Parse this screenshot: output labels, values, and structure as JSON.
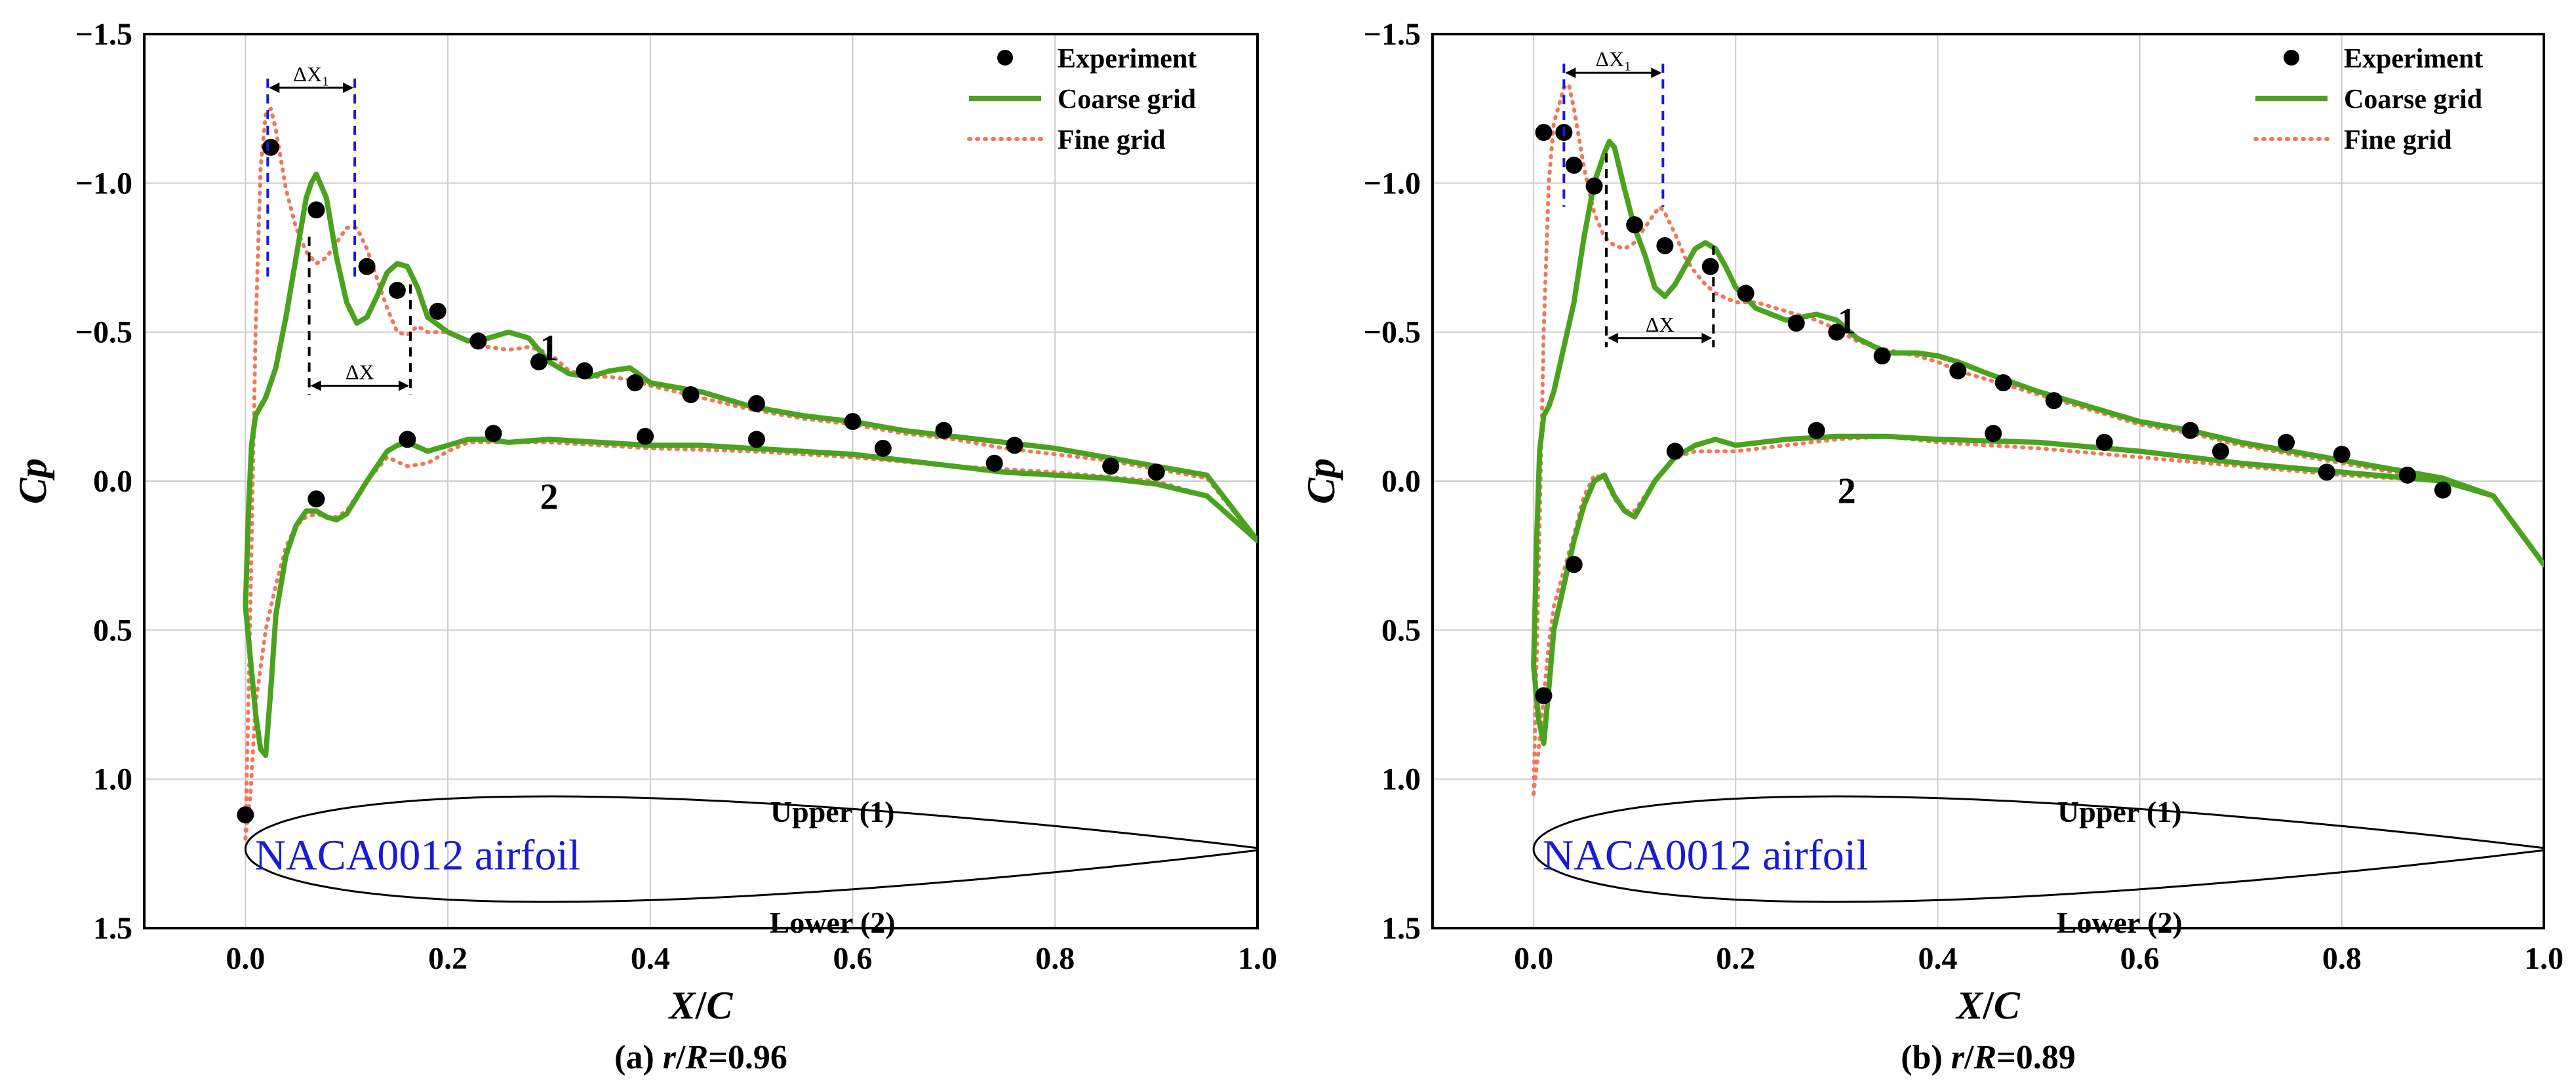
{
  "colors": {
    "experiment": "#000000",
    "coarse": "#4aa21e",
    "fine": "#f0785a",
    "grid": "#cccccc",
    "airfoil_text": "#1a1ad6",
    "marker_blue": "#1a1ad6",
    "marker_black": "#000000"
  },
  "chart_data": [
    {
      "type": "line",
      "panel": "a",
      "caption": "(a) r/R=0.96",
      "caption_parts": [
        "(a) ",
        "r",
        "/",
        "R",
        "=0.96"
      ],
      "xlabel": "X/C",
      "xlabel_parts": [
        "X",
        "/",
        "C"
      ],
      "ylabel": "Cp",
      "xlim": [
        -0.1,
        1.0
      ],
      "ylim": [
        1.5,
        -1.5
      ],
      "y_inverted": true,
      "grid": true,
      "legend_position": "top-right",
      "xticks": [
        "0.0",
        "0.2",
        "0.4",
        "0.6",
        "0.8",
        "1.0"
      ],
      "yticks": [
        "−1.5",
        "−1.0",
        "−0.5",
        "0.0",
        "0.5",
        "1.0",
        "1.5"
      ],
      "legend": [
        "Experiment",
        "Coarse   grid",
        "Fine grid"
      ],
      "curve_labels": [
        {
          "text": "1",
          "x": 0.3,
          "y": -0.45
        },
        {
          "text": "2",
          "x": 0.3,
          "y": 0.05
        }
      ],
      "airfoil_label": "NACA0012 airfoil",
      "upper_label": "Upper (1)",
      "lower_label": "Lower (2)",
      "annotations": [
        {
          "label": "ΔX₁",
          "x1": 0.022,
          "x2": 0.108,
          "y_line": -1.32,
          "y_bottom": -0.68,
          "color": "marker_blue"
        },
        {
          "label": "ΔX",
          "x1": 0.063,
          "x2": 0.163,
          "y_line": -0.32,
          "y_top": -0.82,
          "y_top2": -0.66,
          "color": "marker_black"
        }
      ],
      "series": [
        {
          "name": "Experiment",
          "style": "marker",
          "x": [
            0.025,
            0.07,
            0.12,
            0.15,
            0.19,
            0.23,
            0.29,
            0.335,
            0.385,
            0.44,
            0.505,
            0.6,
            0.69,
            0.76,
            0.0,
            0.07,
            0.16,
            0.245,
            0.395,
            0.505,
            0.63,
            0.74,
            0.855,
            0.9
          ],
          "y": [
            -1.12,
            -0.91,
            -0.72,
            -0.64,
            -0.57,
            -0.47,
            -0.4,
            -0.37,
            -0.33,
            -0.29,
            -0.26,
            -0.2,
            -0.17,
            -0.12,
            1.12,
            0.06,
            -0.14,
            -0.16,
            -0.15,
            -0.14,
            -0.11,
            -0.06,
            -0.05,
            -0.03
          ]
        },
        {
          "name": "Coarse grid upper",
          "style": "solid",
          "x": [
            0.0,
            0.003,
            0.006,
            0.01,
            0.015,
            0.02,
            0.03,
            0.04,
            0.05,
            0.06,
            0.065,
            0.07,
            0.08,
            0.09,
            0.1,
            0.11,
            0.12,
            0.13,
            0.14,
            0.15,
            0.16,
            0.17,
            0.18,
            0.2,
            0.22,
            0.24,
            0.26,
            0.28,
            0.3,
            0.32,
            0.34,
            0.36,
            0.38,
            0.4,
            0.45,
            0.5,
            0.55,
            0.6,
            0.65,
            0.7,
            0.75,
            0.8,
            0.85,
            0.9,
            0.95,
            1.0
          ],
          "y": [
            0.42,
            0.1,
            -0.12,
            -0.22,
            -0.25,
            -0.28,
            -0.38,
            -0.55,
            -0.75,
            -0.95,
            -1.0,
            -1.03,
            -0.95,
            -0.75,
            -0.6,
            -0.53,
            -0.55,
            -0.62,
            -0.7,
            -0.73,
            -0.72,
            -0.65,
            -0.55,
            -0.5,
            -0.47,
            -0.48,
            -0.5,
            -0.48,
            -0.4,
            -0.36,
            -0.35,
            -0.37,
            -0.38,
            -0.33,
            -0.3,
            -0.25,
            -0.22,
            -0.2,
            -0.17,
            -0.15,
            -0.13,
            -0.11,
            -0.08,
            -0.05,
            -0.02,
            0.2
          ]
        },
        {
          "name": "Coarse grid lower",
          "style": "solid",
          "x": [
            0.0,
            0.005,
            0.01,
            0.015,
            0.02,
            0.025,
            0.03,
            0.04,
            0.05,
            0.06,
            0.07,
            0.08,
            0.09,
            0.1,
            0.12,
            0.14,
            0.15,
            0.16,
            0.18,
            0.2,
            0.22,
            0.24,
            0.26,
            0.3,
            0.35,
            0.4,
            0.45,
            0.5,
            0.55,
            0.6,
            0.65,
            0.7,
            0.75,
            0.8,
            0.85,
            0.9,
            0.95,
            1.0
          ],
          "y": [
            0.42,
            0.6,
            0.78,
            0.9,
            0.92,
            0.7,
            0.45,
            0.25,
            0.15,
            0.1,
            0.1,
            0.12,
            0.13,
            0.11,
            0.0,
            -0.1,
            -0.12,
            -0.13,
            -0.1,
            -0.12,
            -0.14,
            -0.14,
            -0.13,
            -0.14,
            -0.13,
            -0.12,
            -0.12,
            -0.11,
            -0.1,
            -0.09,
            -0.07,
            -0.05,
            -0.03,
            -0.02,
            -0.01,
            0.01,
            0.05,
            0.2
          ]
        },
        {
          "name": "Fine grid upper",
          "style": "dotted",
          "x": [
            0.0,
            0.005,
            0.01,
            0.015,
            0.02,
            0.025,
            0.03,
            0.04,
            0.05,
            0.06,
            0.07,
            0.08,
            0.09,
            0.1,
            0.11,
            0.12,
            0.13,
            0.14,
            0.15,
            0.16,
            0.17,
            0.18,
            0.2,
            0.22,
            0.24,
            0.26,
            0.28,
            0.3,
            0.32,
            0.34,
            0.36,
            0.38,
            0.4,
            0.45,
            0.5,
            0.55,
            0.6,
            0.65,
            0.7,
            0.75,
            0.8,
            0.85,
            0.9,
            0.95,
            1.0
          ],
          "y": [
            1.2,
            0.4,
            -0.5,
            -1.05,
            -1.23,
            -1.25,
            -1.18,
            -0.98,
            -0.85,
            -0.77,
            -0.73,
            -0.75,
            -0.8,
            -0.85,
            -0.85,
            -0.78,
            -0.68,
            -0.58,
            -0.5,
            -0.49,
            -0.52,
            -0.5,
            -0.5,
            -0.47,
            -0.45,
            -0.44,
            -0.45,
            -0.43,
            -0.37,
            -0.35,
            -0.35,
            -0.34,
            -0.32,
            -0.28,
            -0.24,
            -0.21,
            -0.19,
            -0.16,
            -0.14,
            -0.11,
            -0.09,
            -0.07,
            -0.04,
            -0.01,
            0.2
          ]
        },
        {
          "name": "Fine grid lower",
          "style": "dotted",
          "x": [
            0.0,
            0.005,
            0.01,
            0.02,
            0.03,
            0.04,
            0.05,
            0.06,
            0.07,
            0.08,
            0.09,
            0.1,
            0.12,
            0.14,
            0.16,
            0.18,
            0.2,
            0.22,
            0.25,
            0.3,
            0.35,
            0.4,
            0.5,
            0.6,
            0.7,
            0.8,
            0.9,
            0.95,
            1.0
          ],
          "y": [
            1.2,
            1.05,
            0.75,
            0.5,
            0.35,
            0.22,
            0.15,
            0.12,
            0.11,
            0.12,
            0.12,
            0.1,
            0.0,
            -0.08,
            -0.05,
            -0.06,
            -0.1,
            -0.13,
            -0.13,
            -0.13,
            -0.12,
            -0.11,
            -0.1,
            -0.08,
            -0.05,
            -0.03,
            0.0,
            0.05,
            0.2
          ]
        }
      ]
    },
    {
      "type": "line",
      "panel": "b",
      "caption": "(b) r/R=0.89",
      "caption_parts": [
        "(b) ",
        "r",
        "/",
        "R",
        "=0.89"
      ],
      "xlabel": "X/C",
      "xlabel_parts": [
        "X",
        "/",
        "C"
      ],
      "ylabel": "Cp",
      "xlim": [
        -0.1,
        1.0
      ],
      "ylim": [
        1.5,
        -1.5
      ],
      "y_inverted": true,
      "grid": true,
      "legend_position": "top-right",
      "xticks": [
        "0.0",
        "0.2",
        "0.4",
        "0.6",
        "0.8",
        "1.0"
      ],
      "yticks": [
        "−1.5",
        "−1.0",
        "−0.5",
        "0.0",
        "0.5",
        "1.0",
        "1.5"
      ],
      "legend": [
        "Experiment",
        "Coarse   grid",
        "Fine grid"
      ],
      "curve_labels": [
        {
          "text": "1",
          "x": 0.31,
          "y": -0.54
        },
        {
          "text": "2",
          "x": 0.31,
          "y": 0.03
        }
      ],
      "airfoil_label": "NACA0012 airfoil",
      "upper_label": "Upper (1)",
      "lower_label": "Lower (2)",
      "annotations": [
        {
          "label": "ΔX₁",
          "x1": 0.03,
          "x2": 0.128,
          "y_line": -1.37,
          "y_bottom": -0.92,
          "color": "marker_blue"
        },
        {
          "label": "ΔX",
          "x1": 0.072,
          "x2": 0.178,
          "y_line": -0.48,
          "y_top": -1.1,
          "y_top2": -0.79,
          "color": "marker_black"
        }
      ],
      "series": [
        {
          "name": "Experiment",
          "style": "marker",
          "x": [
            0.01,
            0.03,
            0.04,
            0.06,
            0.1,
            0.13,
            0.175,
            0.21,
            0.26,
            0.3,
            0.345,
            0.42,
            0.465,
            0.515,
            0.65,
            0.745,
            0.8,
            0.865,
            0.9,
            0.01,
            0.04,
            0.14,
            0.28,
            0.455,
            0.565,
            0.68,
            0.785
          ],
          "y": [
            -1.17,
            -1.17,
            -1.06,
            -0.99,
            -0.86,
            -0.79,
            -0.72,
            -0.63,
            -0.53,
            -0.5,
            -0.42,
            -0.37,
            -0.33,
            -0.27,
            -0.17,
            -0.13,
            -0.09,
            -0.02,
            0.03,
            0.72,
            0.28,
            -0.1,
            -0.17,
            -0.16,
            -0.13,
            -0.1,
            -0.03
          ]
        },
        {
          "name": "Coarse grid upper",
          "style": "solid",
          "x": [
            0.0,
            0.003,
            0.006,
            0.01,
            0.015,
            0.02,
            0.03,
            0.04,
            0.05,
            0.06,
            0.07,
            0.075,
            0.08,
            0.09,
            0.1,
            0.11,
            0.12,
            0.13,
            0.14,
            0.15,
            0.16,
            0.17,
            0.18,
            0.19,
            0.2,
            0.22,
            0.25,
            0.28,
            0.3,
            0.32,
            0.35,
            0.38,
            0.4,
            0.42,
            0.45,
            0.5,
            0.55,
            0.6,
            0.65,
            0.7,
            0.75,
            0.8,
            0.85,
            0.9,
            0.95,
            1.0
          ],
          "y": [
            0.62,
            0.2,
            -0.1,
            -0.22,
            -0.25,
            -0.3,
            -0.45,
            -0.6,
            -0.82,
            -1.0,
            -1.1,
            -1.14,
            -1.12,
            -0.98,
            -0.85,
            -0.76,
            -0.65,
            -0.62,
            -0.66,
            -0.72,
            -0.78,
            -0.8,
            -0.78,
            -0.72,
            -0.65,
            -0.58,
            -0.54,
            -0.56,
            -0.54,
            -0.48,
            -0.43,
            -0.43,
            -0.42,
            -0.4,
            -0.36,
            -0.3,
            -0.25,
            -0.2,
            -0.17,
            -0.13,
            -0.1,
            -0.07,
            -0.04,
            -0.01,
            0.05,
            0.28
          ]
        },
        {
          "name": "Coarse grid lower",
          "style": "solid",
          "x": [
            0.0,
            0.005,
            0.01,
            0.015,
            0.02,
            0.03,
            0.04,
            0.05,
            0.06,
            0.07,
            0.08,
            0.09,
            0.1,
            0.12,
            0.14,
            0.16,
            0.18,
            0.2,
            0.25,
            0.3,
            0.35,
            0.4,
            0.5,
            0.6,
            0.7,
            0.8,
            0.9,
            0.95,
            1.0
          ],
          "y": [
            0.62,
            0.8,
            0.88,
            0.7,
            0.5,
            0.35,
            0.2,
            0.08,
            0.0,
            -0.02,
            0.05,
            0.1,
            0.12,
            0.0,
            -0.08,
            -0.12,
            -0.14,
            -0.12,
            -0.14,
            -0.15,
            -0.15,
            -0.14,
            -0.13,
            -0.1,
            -0.06,
            -0.03,
            0.0,
            0.05,
            0.28
          ]
        },
        {
          "name": "Fine grid upper",
          "style": "dotted",
          "x": [
            0.0,
            0.005,
            0.01,
            0.015,
            0.02,
            0.03,
            0.035,
            0.04,
            0.05,
            0.06,
            0.07,
            0.08,
            0.09,
            0.1,
            0.11,
            0.12,
            0.125,
            0.13,
            0.14,
            0.15,
            0.16,
            0.17,
            0.18,
            0.2,
            0.22,
            0.25,
            0.28,
            0.3,
            0.32,
            0.35,
            0.38,
            0.4,
            0.42,
            0.45,
            0.5,
            0.55,
            0.6,
            0.65,
            0.7,
            0.75,
            0.8,
            0.85,
            0.9,
            0.95,
            1.0
          ],
          "y": [
            1.05,
            0.3,
            -0.5,
            -1.0,
            -1.2,
            -1.32,
            -1.33,
            -1.25,
            -1.05,
            -0.9,
            -0.82,
            -0.79,
            -0.78,
            -0.8,
            -0.85,
            -0.9,
            -0.92,
            -0.9,
            -0.83,
            -0.75,
            -0.7,
            -0.66,
            -0.63,
            -0.6,
            -0.6,
            -0.57,
            -0.54,
            -0.51,
            -0.47,
            -0.44,
            -0.42,
            -0.4,
            -0.37,
            -0.34,
            -0.29,
            -0.24,
            -0.19,
            -0.16,
            -0.12,
            -0.09,
            -0.06,
            -0.03,
            0.0,
            0.05,
            0.28
          ]
        },
        {
          "name": "Fine grid lower",
          "style": "dotted",
          "x": [
            0.0,
            0.005,
            0.01,
            0.015,
            0.02,
            0.03,
            0.04,
            0.05,
            0.06,
            0.07,
            0.08,
            0.09,
            0.1,
            0.12,
            0.14,
            0.16,
            0.18,
            0.2,
            0.25,
            0.3,
            0.35,
            0.4,
            0.5,
            0.6,
            0.7,
            0.8,
            0.9,
            0.95,
            1.0
          ],
          "y": [
            1.05,
            0.9,
            0.72,
            0.55,
            0.42,
            0.3,
            0.18,
            0.05,
            -0.02,
            -0.01,
            0.06,
            0.1,
            0.1,
            0.0,
            -0.08,
            -0.1,
            -0.1,
            -0.1,
            -0.12,
            -0.14,
            -0.15,
            -0.13,
            -0.11,
            -0.08,
            -0.05,
            -0.02,
            0.0,
            0.05,
            0.28
          ]
        }
      ]
    }
  ]
}
